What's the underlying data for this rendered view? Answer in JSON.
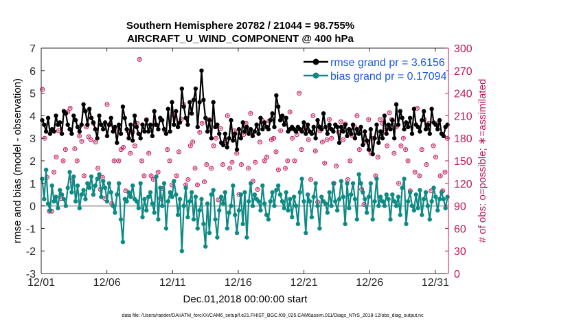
{
  "chart_data": {
    "type": "line",
    "title": "Southern Hemisphere 20782 / 21044 = 98.755%",
    "subtitle": "AIRCRAFT_U_WIND_COMPONENT @ 400 hPa",
    "xlabel": "Dec.01,2018 00:00:00 start",
    "ylabel_left": "rmse and bias (model - observation)",
    "ylabel_right": "# of obs: o=possible; ∗=assimilated",
    "footer": "data file: /Users/raeder/DAI/ATM_forcXX/CAM6_setup/f.e21.FHIST_BGC.f09_025.CAM6assim.011/Diags_NTrS_2018-12/obs_diag_output.nc",
    "xlim": [
      1,
      32
    ],
    "ylim_left": [
      -3,
      7
    ],
    "ylim_right": [
      0,
      300
    ],
    "x_ticks": [
      1,
      6,
      11,
      16,
      21,
      26,
      31
    ],
    "x_tick_labels": [
      "12/01",
      "12/06",
      "12/11",
      "12/16",
      "12/21",
      "12/26",
      "12/31"
    ],
    "y_left_ticks": [
      "-3",
      "-2",
      "-1",
      "0",
      "1",
      "2",
      "3",
      "4",
      "5",
      "6",
      "7"
    ],
    "y_right_ticks": [
      "0",
      "30",
      "60",
      "90",
      "120",
      "150",
      "180",
      "210",
      "240",
      "270",
      "300"
    ],
    "zero_line": 0,
    "colors": {
      "rmse": "#000000",
      "bias": "#0e8a84",
      "obs": "#c0175c",
      "legend_text": "#1a56e8",
      "zero": "#b4b4b4"
    },
    "series": [
      {
        "name": "rmse grand pr = 3.6156",
        "axis": "left",
        "values": [
          3.8,
          3.6,
          3.3,
          3.9,
          3.2,
          3.4,
          3.3,
          4.0,
          3.6,
          3.7,
          3.2,
          4.2,
          4.1,
          3.6,
          3.4,
          3.2,
          4.0,
          3.8,
          3.5,
          3.3,
          3.6,
          4.5,
          4.2,
          3.6,
          4.3,
          3.9,
          3.7,
          3.4,
          3.0,
          4.0,
          3.6,
          3.4,
          3.7,
          3.1,
          3.6,
          3.9,
          3.3,
          3.5,
          2.8,
          3.6,
          3.2,
          4.4,
          3.9,
          3.4,
          3.0,
          3.6,
          2.9,
          4.0,
          3.5,
          3.2,
          3.0,
          3.6,
          3.3,
          3.8,
          3.3,
          3.6,
          3.1,
          4.2,
          3.6,
          3.4,
          3.9,
          3.8,
          3.4,
          3.2,
          4.3,
          3.3,
          4.6,
          3.6,
          4.2,
          3.5,
          3.7,
          5.2,
          4.4,
          3.9,
          3.6,
          4.6,
          4.1,
          4.7,
          5.2,
          3.5,
          4.6,
          6.0,
          4.7,
          3.9,
          3.3,
          3.8,
          3.0,
          4.6,
          3.5,
          3.6,
          3.2,
          2.8,
          2.7,
          3.2,
          2.6,
          3.0,
          3.8,
          2.9,
          3.2,
          2.5,
          3.4,
          3.0,
          3.7,
          3.3,
          3.5,
          3.2,
          3.4,
          3.1,
          3.3,
          3.6,
          3.2,
          3.9,
          3.4,
          3.7,
          3.5,
          3.4,
          3.8,
          4.1,
          3.5,
          4.9,
          4.4,
          3.8,
          4.0,
          3.6,
          3.9,
          3.3,
          3.4,
          3.5,
          3.4,
          3.3,
          3.5,
          3.4,
          3.3,
          3.7,
          3.2,
          3.6,
          3.3,
          3.2,
          3.5,
          3.0,
          3.8,
          3.5,
          3.4,
          4.1,
          3.5,
          3.2,
          3.6,
          3.4,
          3.3,
          3.6,
          3.5,
          2.8,
          3.5,
          3.3,
          3.6,
          3.1,
          3.4,
          3.2,
          3.6,
          3.0,
          3.4,
          3.2,
          3.5,
          2.7,
          3.3,
          2.9,
          2.5,
          3.4,
          2.3,
          3.0,
          3.6,
          2.8,
          3.3,
          3.0,
          4.0,
          3.2,
          3.6,
          3.4,
          3.8,
          3.0,
          4.5,
          3.6,
          4.2,
          3.9,
          3.4,
          3.7,
          3.5,
          3.9,
          3.2,
          4.3,
          3.6,
          3.5,
          3.3,
          3.8,
          4.2,
          3.4,
          3.6,
          3.2,
          4.3,
          3.7,
          3.6,
          3.4,
          3.8,
          3.2,
          3.1,
          3.5,
          3.6
        ]
      },
      {
        "name": "bias grand pr = 0.17094",
        "axis": "left",
        "values": [
          1.2,
          0.3,
          1.6,
          0.1,
          -0.2,
          0.9,
          0.2,
          0.4,
          -0.1,
          0.7,
          0.5,
          0.3,
          0.0,
          0.8,
          1.5,
          0.6,
          1.3,
          0.2,
          0.9,
          -0.1,
          0.5,
          0.7,
          0.3,
          1.0,
          0.8,
          1.3,
          0.5,
          0.9,
          1.2,
          1.4,
          0.4,
          1.1,
          0.8,
          0.2,
          1.0,
          0.6,
          0.0,
          -0.3,
          0.5,
          1.0,
          -0.6,
          -1.6,
          0.3,
          0.2,
          0.6,
          0.4,
          0.9,
          0.3,
          0.2,
          -0.1,
          1.0,
          -0.5,
          0.3,
          -0.2,
          0.4,
          0.6,
          0.1,
          -0.3,
          1.3,
          -0.6,
          0.8,
          0.0,
          1.0,
          -1.0,
          0.2,
          0.6,
          0.4,
          1.1,
          0.5,
          -0.4,
          0.3,
          -2.0,
          0.0,
          0.8,
          -0.5,
          0.2,
          0.6,
          -0.6,
          0.4,
          -1.0,
          -0.2,
          0.3,
          -0.8,
          -1.8,
          0.1,
          -1.2,
          0.5,
          0.7,
          -0.6,
          -1.4,
          -0.2,
          0.4,
          0.1,
          0.6,
          -1.0,
          -0.3,
          0.0,
          0.9,
          -0.4,
          -1.2,
          -0.2,
          0.5,
          -0.8,
          0.6,
          -1.4,
          0.2,
          1.0,
          0.0,
          0.5,
          0.3,
          0.2,
          -0.2,
          0.9,
          0.1,
          -0.4,
          -0.6,
          0.2,
          0.6,
          0.0,
          0.7,
          0.9,
          0.5,
          0.2,
          -0.1,
          0.6,
          -0.2,
          0.3,
          -0.5,
          0.4,
          0.0,
          -0.8,
          0.6,
          1.2,
          0.2,
          -1.2,
          0.5,
          0.2,
          -0.5,
          0.4,
          1.0,
          0.0,
          -1.0,
          0.4,
          0.2,
          0.1,
          -0.3,
          0.6,
          0.0,
          1.0,
          0.2,
          -0.2,
          0.3,
          1.1,
          0.4,
          -0.8,
          1.0,
          -0.1,
          0.5,
          1.0,
          0.3,
          -0.6,
          1.4,
          1.0,
          0.6,
          0.3,
          -0.3,
          0.4,
          1.0,
          -0.6,
          0.2,
          1.2,
          0.0,
          0.4,
          0.2,
          0.0,
          0.5,
          0.3,
          -0.6,
          0.5,
          0.2,
          0.0,
          0.4,
          -0.4,
          0.8,
          1.2,
          -0.8,
          0.2,
          0.6,
          0.0,
          -0.2,
          0.5,
          -0.1,
          0.7,
          -0.4,
          0.3,
          0.6,
          0.0,
          -0.6,
          0.2,
          0.8,
          0.4,
          -0.2,
          0.3,
          0.6,
          0.3,
          -0.1,
          0.4
        ]
      },
      {
        "name": "# obs possible",
        "axis": "right",
        "values": [
          245,
          180,
          128,
          83,
          83,
          135,
          155,
          190,
          100,
          150,
          165,
          215,
          220,
          124,
          166,
          150,
          183,
          176,
          130,
          195,
          182,
          178,
          200,
          175,
          140,
          112,
          128,
          100,
          225,
          198,
          93,
          150,
          193,
          150,
          165,
          168,
          110,
          190,
          160,
          188,
          170,
          200,
          285,
          150,
          130,
          205,
          160,
          130,
          125,
          198,
          135,
          100,
          113,
          190,
          165,
          150,
          118,
          210,
          130,
          162,
          205,
          225,
          118,
          125,
          170,
          175,
          140,
          118,
          188,
          200,
          122,
          145,
          205,
          140,
          170,
          180,
          98,
          193,
          145,
          174,
          210,
          140,
          148,
          190,
          160,
          105,
          145,
          185,
          200,
          140,
          213,
          123,
          148,
          112,
          175,
          204,
          150,
          155,
          203,
          178,
          180,
          162,
          138,
          190,
          208,
          140,
          150,
          215,
          180,
          150,
          185,
          240,
          165,
          192,
          193,
          178,
          125,
          210,
          163,
          95,
          190,
          175,
          147,
          178,
          205,
          180,
          120,
          143,
          188,
          202,
          178,
          199,
          125,
          150,
          183,
          195,
          210,
          165,
          112,
          92,
          175,
          205,
          160,
          180,
          130,
          155,
          205,
          200,
          190,
          170,
          214,
          205,
          160,
          195,
          120,
          170,
          180,
          165,
          150,
          110,
          270,
          135,
          220,
          130,
          165,
          205,
          145,
          200,
          110,
          170,
          155,
          200,
          130,
          110,
          135,
          180
        ]
      }
    ]
  }
}
